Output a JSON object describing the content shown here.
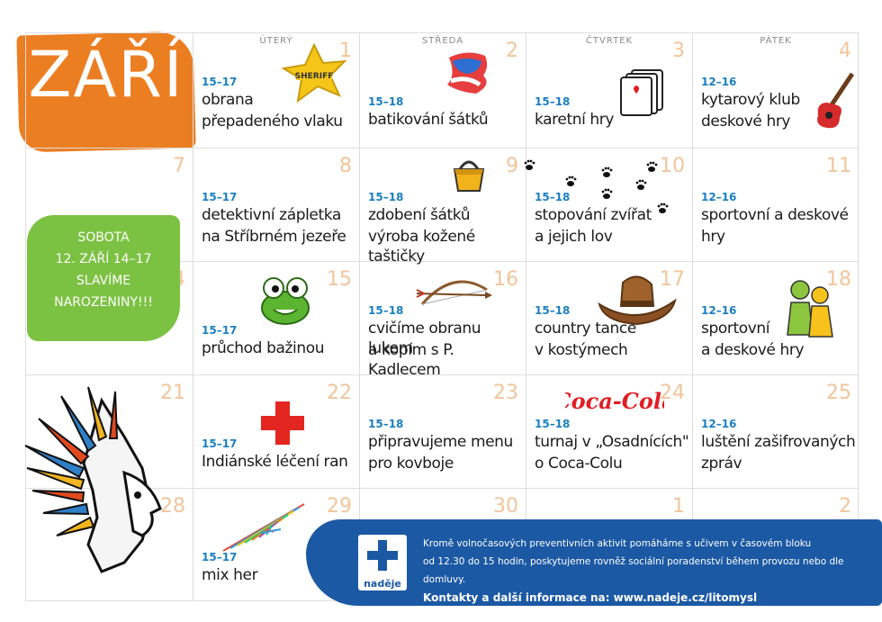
{
  "month": "ZÁŘÍ",
  "day_names": [
    "ÚTERÝ",
    "STŘEDA",
    "ČTVRTEK",
    "PÁTEK"
  ],
  "saturday_note": {
    "line1": "SOBOTA",
    "line2": "12. ZÁŘÍ 14–17",
    "line3": "SLAVÍME",
    "line4": "NAROZENINY!!!"
  },
  "weeks": [
    {
      "sun": "",
      "days": [
        {
          "num": "1",
          "time": "15–17",
          "l1": "obrana",
          "l2": "přepadeného vlaku",
          "icon": "sheriff-star-icon",
          "icon_text": "SHERIFF"
        },
        {
          "num": "2",
          "time": "15–18",
          "l1": "batikování šátků",
          "l2": "",
          "icon": "scarf-icon"
        },
        {
          "num": "3",
          "time": "15–18",
          "l1": "karetní hry",
          "l2": "",
          "icon": "playing-cards-icon"
        },
        {
          "num": "4",
          "time": "12–16",
          "l1": "kytarový klub",
          "l2": "deskové hry",
          "icon": "guitar-icon"
        }
      ]
    },
    {
      "sun": "7",
      "days": [
        {
          "num": "8",
          "time": "15–17",
          "l1": "detektivní zápletka",
          "l2": "na Stříbrném jezeře",
          "icon": ""
        },
        {
          "num": "9",
          "time": "15–18",
          "l1": "zdobení šátků",
          "l2": "výroba kožené taštičky",
          "icon": "handbag-icon"
        },
        {
          "num": "10",
          "time": "15–18",
          "l1": "stopování zvířat",
          "l2": "a jejich lov",
          "icon": "paw-prints-icon"
        },
        {
          "num": "11",
          "time": "12–16",
          "l1": "sportovní a deskové",
          "l2": "hry",
          "icon": ""
        }
      ]
    },
    {
      "sun": "14",
      "days": [
        {
          "num": "15",
          "time": "15–17",
          "l1": "průchod bažinou",
          "l2": "",
          "icon": "frog-icon"
        },
        {
          "num": "16",
          "time": "15–18",
          "l1": "cvičíme obranu lukem",
          "l2": "a kopím s P. Kadlecem",
          "icon": "bow-arrow-icon"
        },
        {
          "num": "17",
          "time": "15–18",
          "l1": "country tance",
          "l2": "v kostýmech",
          "icon": "cowboy-hat-icon"
        },
        {
          "num": "18",
          "time": "12–16",
          "l1": "sportovní",
          "l2": "a deskové hry",
          "icon": "board-game-pieces-icon"
        }
      ]
    },
    {
      "sun": "21",
      "days": [
        {
          "num": "22",
          "time": "15–17",
          "l1": "Indiánské léčení ran",
          "l2": "",
          "icon": "red-cross-icon"
        },
        {
          "num": "23",
          "time": "15–18",
          "l1": "připravujeme menu",
          "l2": "pro kovboje",
          "icon": ""
        },
        {
          "num": "24",
          "time": "15–18",
          "l1": "turnaj v „Osadnících\"",
          "l2": "o Coca-Colu",
          "icon": "coca-cola-logo",
          "icon_text": "Coca-Cola"
        },
        {
          "num": "25",
          "time": "12–16",
          "l1": "luštění zašifrovaných",
          "l2": "zpráv",
          "icon": ""
        }
      ]
    },
    {
      "sun": "28",
      "days": [
        {
          "num": "29",
          "time": "15–17",
          "l1": "mix her",
          "l2": "",
          "icon": "mikado-sticks-icon"
        },
        {
          "num": "30",
          "time": "",
          "l1": "",
          "l2": "",
          "icon": ""
        },
        {
          "num": "1",
          "time": "",
          "l1": "",
          "l2": "",
          "icon": ""
        },
        {
          "num": "2",
          "time": "",
          "l1": "",
          "l2": "",
          "icon": ""
        }
      ]
    }
  ],
  "footer": {
    "line1": "Kromě volnočasových preventivních aktivit pomáháme s učivem v časovém bloku",
    "line2": "od 12.30 do 15 hodin, poskytujeme rovněž sociální poradenství během provozu nebo dle domluvy.",
    "line3": "Kontakty a další informace na: www.nadeje.cz/litomysl",
    "logo_text": "naděje"
  },
  "colors": {
    "orange": "#ec7e22",
    "green": "#7cc242",
    "blue": "#1b59a4",
    "time": "#1a7fc1",
    "daynum": "#f1c59a"
  }
}
